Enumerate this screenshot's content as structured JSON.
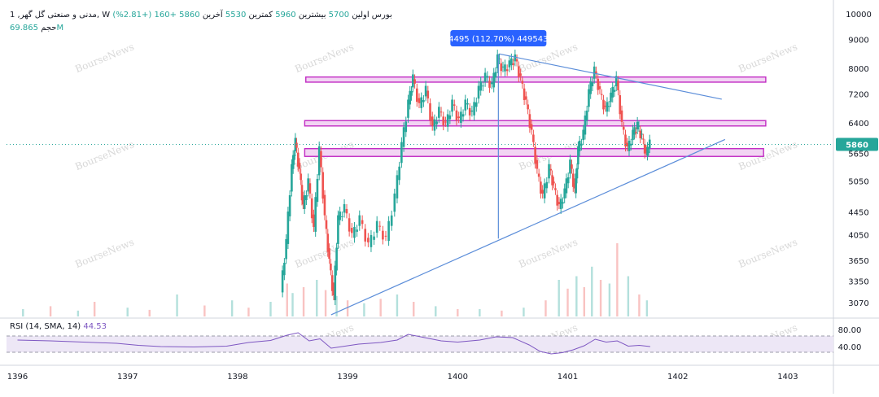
{
  "header": {
    "symbol": "مدنی و صنعتی گل گهر, 1, W",
    "market": "بورس",
    "open_label": "اولین",
    "open": "5700",
    "high_label": "بیشترین",
    "high": "5960",
    "low_label": "کمترین",
    "low": "5530",
    "close_label": "آخرین",
    "close": "5860",
    "change": "+160 (+2.81%)",
    "volume_label": "حجم",
    "volume": "69.865M"
  },
  "rsi": {
    "label": "RSI (14, SMA, 14)",
    "value": "44.53",
    "upper": 70,
    "lower": 30,
    "upper_label": "80.00",
    "lower_label": "40.00"
  },
  "measure": {
    "label": "4495 (112.70%) 449543",
    "from": 3988,
    "to": 8483
  },
  "watermark": "BourseNews",
  "colors": {
    "up": "#26a69a",
    "down": "#ef5350",
    "trendline": "#5b8dd9",
    "zone": "#c22dc4",
    "zone_fill": "#f2d4f3",
    "measure_bg": "#2962ff",
    "rsi_line": "#7e57c2",
    "rsi_band": "#ede7f6",
    "last_price_bg": "#26a69a"
  },
  "chart_data": {
    "type": "candlestick",
    "scale": "log",
    "last_price": 5860,
    "y_ticks": [
      10000,
      9000,
      8000,
      7200,
      6400,
      5650,
      5050,
      4450,
      4050,
      3650,
      3350,
      3070
    ],
    "ylim": [
      2900,
      10300
    ],
    "x_tick_labels": [
      "1396",
      "1397",
      "1398",
      "1399",
      "1400",
      "1401",
      "1402",
      "1403"
    ],
    "x_ticks": [
      1396,
      1397,
      1398,
      1399,
      1400,
      1401,
      1402,
      1403
    ],
    "xlim": [
      1395.9,
      1403.4
    ],
    "price_series": [
      [
        1398.4,
        3200
      ],
      [
        1398.45,
        3900
      ],
      [
        1398.5,
        5300
      ],
      [
        1398.53,
        5900
      ],
      [
        1398.57,
        5200
      ],
      [
        1398.6,
        4500
      ],
      [
        1398.65,
        5000
      ],
      [
        1398.7,
        4100
      ],
      [
        1398.75,
        5700
      ],
      [
        1398.8,
        4300
      ],
      [
        1398.84,
        3600
      ],
      [
        1398.88,
        3100
      ],
      [
        1398.92,
        4300
      ],
      [
        1398.98,
        4500
      ],
      [
        1399.05,
        4000
      ],
      [
        1399.12,
        4300
      ],
      [
        1399.2,
        3850
      ],
      [
        1399.28,
        4200
      ],
      [
        1399.36,
        3950
      ],
      [
        1399.44,
        4700
      ],
      [
        1399.5,
        5800
      ],
      [
        1399.56,
        6900
      ],
      [
        1399.6,
        7650
      ],
      [
        1399.66,
        6800
      ],
      [
        1399.72,
        7300
      ],
      [
        1399.78,
        6200
      ],
      [
        1399.84,
        6700
      ],
      [
        1399.9,
        6300
      ],
      [
        1399.96,
        6900
      ],
      [
        1400.02,
        6400
      ],
      [
        1400.08,
        6900
      ],
      [
        1400.14,
        6600
      ],
      [
        1400.2,
        7300
      ],
      [
        1400.26,
        7700
      ],
      [
        1400.32,
        7400
      ],
      [
        1400.37,
        8300
      ],
      [
        1400.42,
        7900
      ],
      [
        1400.48,
        8100
      ],
      [
        1400.53,
        8300
      ],
      [
        1400.58,
        7600
      ],
      [
        1400.63,
        6900
      ],
      [
        1400.68,
        6100
      ],
      [
        1400.73,
        5200
      ],
      [
        1400.78,
        4700
      ],
      [
        1400.84,
        5300
      ],
      [
        1400.88,
        4900
      ],
      [
        1400.93,
        4500
      ],
      [
        1400.98,
        4800
      ],
      [
        1401.03,
        5400
      ],
      [
        1401.07,
        4800
      ],
      [
        1401.1,
        5700
      ],
      [
        1401.15,
        6100
      ],
      [
        1401.2,
        7200
      ],
      [
        1401.25,
        7900
      ],
      [
        1401.3,
        7200
      ],
      [
        1401.35,
        6700
      ],
      [
        1401.4,
        7100
      ],
      [
        1401.45,
        7600
      ],
      [
        1401.5,
        6300
      ],
      [
        1401.55,
        5700
      ],
      [
        1401.6,
        6100
      ],
      [
        1401.64,
        6300
      ],
      [
        1401.68,
        6000
      ],
      [
        1401.72,
        5600
      ],
      [
        1401.75,
        5860
      ]
    ],
    "volume_series": [
      [
        1396.05,
        0.1
      ],
      [
        1396.3,
        0.14
      ],
      [
        1396.55,
        0.08
      ],
      [
        1396.7,
        0.2
      ],
      [
        1397.0,
        0.12
      ],
      [
        1397.2,
        0.09
      ],
      [
        1397.45,
        0.3
      ],
      [
        1397.7,
        0.15
      ],
      [
        1397.95,
        0.22
      ],
      [
        1398.1,
        0.12
      ],
      [
        1398.3,
        0.2
      ],
      [
        1398.45,
        0.45
      ],
      [
        1398.5,
        0.32
      ],
      [
        1398.6,
        0.4
      ],
      [
        1398.72,
        0.5
      ],
      [
        1398.8,
        0.36
      ],
      [
        1398.9,
        0.28
      ],
      [
        1399.0,
        0.22
      ],
      [
        1399.15,
        0.18
      ],
      [
        1399.3,
        0.24
      ],
      [
        1399.45,
        0.3
      ],
      [
        1399.6,
        0.2
      ],
      [
        1399.8,
        0.14
      ],
      [
        1400.0,
        0.1
      ],
      [
        1400.2,
        0.1
      ],
      [
        1400.4,
        0.08
      ],
      [
        1400.6,
        0.12
      ],
      [
        1400.8,
        0.22
      ],
      [
        1400.92,
        0.5
      ],
      [
        1401.0,
        0.38
      ],
      [
        1401.08,
        0.55
      ],
      [
        1401.15,
        0.4
      ],
      [
        1401.22,
        0.68
      ],
      [
        1401.3,
        0.5
      ],
      [
        1401.38,
        0.45
      ],
      [
        1401.45,
        1.0
      ],
      [
        1401.55,
        0.55
      ],
      [
        1401.65,
        0.3
      ],
      [
        1401.72,
        0.22
      ]
    ],
    "rsi_series": [
      [
        1396.0,
        60
      ],
      [
        1396.3,
        58
      ],
      [
        1396.6,
        55
      ],
      [
        1396.9,
        52
      ],
      [
        1397.1,
        47
      ],
      [
        1397.3,
        44
      ],
      [
        1397.6,
        43
      ],
      [
        1397.9,
        45
      ],
      [
        1398.1,
        54
      ],
      [
        1398.3,
        59
      ],
      [
        1398.45,
        72
      ],
      [
        1398.55,
        78
      ],
      [
        1398.65,
        58
      ],
      [
        1398.75,
        63
      ],
      [
        1398.85,
        40
      ],
      [
        1398.95,
        44
      ],
      [
        1399.1,
        50
      ],
      [
        1399.3,
        54
      ],
      [
        1399.45,
        60
      ],
      [
        1399.55,
        74
      ],
      [
        1399.7,
        66
      ],
      [
        1399.85,
        58
      ],
      [
        1400.0,
        55
      ],
      [
        1400.2,
        60
      ],
      [
        1400.35,
        68
      ],
      [
        1400.5,
        66
      ],
      [
        1400.65,
        48
      ],
      [
        1400.75,
        32
      ],
      [
        1400.85,
        26
      ],
      [
        1400.95,
        29
      ],
      [
        1401.05,
        36
      ],
      [
        1401.15,
        46
      ],
      [
        1401.25,
        62
      ],
      [
        1401.35,
        55
      ],
      [
        1401.45,
        58
      ],
      [
        1401.55,
        45
      ],
      [
        1401.65,
        47
      ],
      [
        1401.75,
        44
      ]
    ],
    "zones": [
      {
        "low": 7560,
        "high": 7720,
        "x_start": 1398.62,
        "x_end": 1402.8
      },
      {
        "low": 6320,
        "high": 6460,
        "x_start": 1398.61,
        "x_end": 1402.8
      },
      {
        "low": 5580,
        "high": 5760,
        "x_start": 1398.61,
        "x_end": 1402.78
      }
    ],
    "trendlines": [
      {
        "x1": 1398.85,
        "y1": 2920,
        "x2": 1402.43,
        "y2": 5980
      },
      {
        "x1": 1400.38,
        "y1": 8483,
        "x2": 1402.4,
        "y2": 7050
      }
    ]
  }
}
